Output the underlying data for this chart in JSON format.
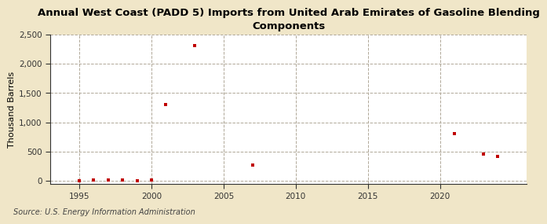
{
  "title": "Annual West Coast (PADD 5) Imports from United Arab Emirates of Gasoline Blending\nComponents",
  "ylabel": "Thousand Barrels",
  "source": "Source: U.S. Energy Information Administration",
  "background_color": "#f0e6c8",
  "plot_bg_color": "#ffffff",
  "marker_color": "#c00000",
  "grid_color": "#b0a898",
  "xlim": [
    1993,
    2026
  ],
  "ylim": [
    -50,
    2500
  ],
  "yticks": [
    0,
    500,
    1000,
    1500,
    2000,
    2500
  ],
  "ytick_labels": [
    "0",
    "500",
    "1,000",
    "1,500",
    "2,000",
    "2,500"
  ],
  "xticks": [
    1995,
    2000,
    2005,
    2010,
    2015,
    2020
  ],
  "data_x": [
    1995,
    1996,
    1997,
    1998,
    1999,
    2000,
    2001,
    2003,
    2007,
    2021,
    2023,
    2024
  ],
  "data_y": [
    5,
    10,
    10,
    10,
    8,
    10,
    1300,
    2310,
    270,
    800,
    460,
    415
  ]
}
